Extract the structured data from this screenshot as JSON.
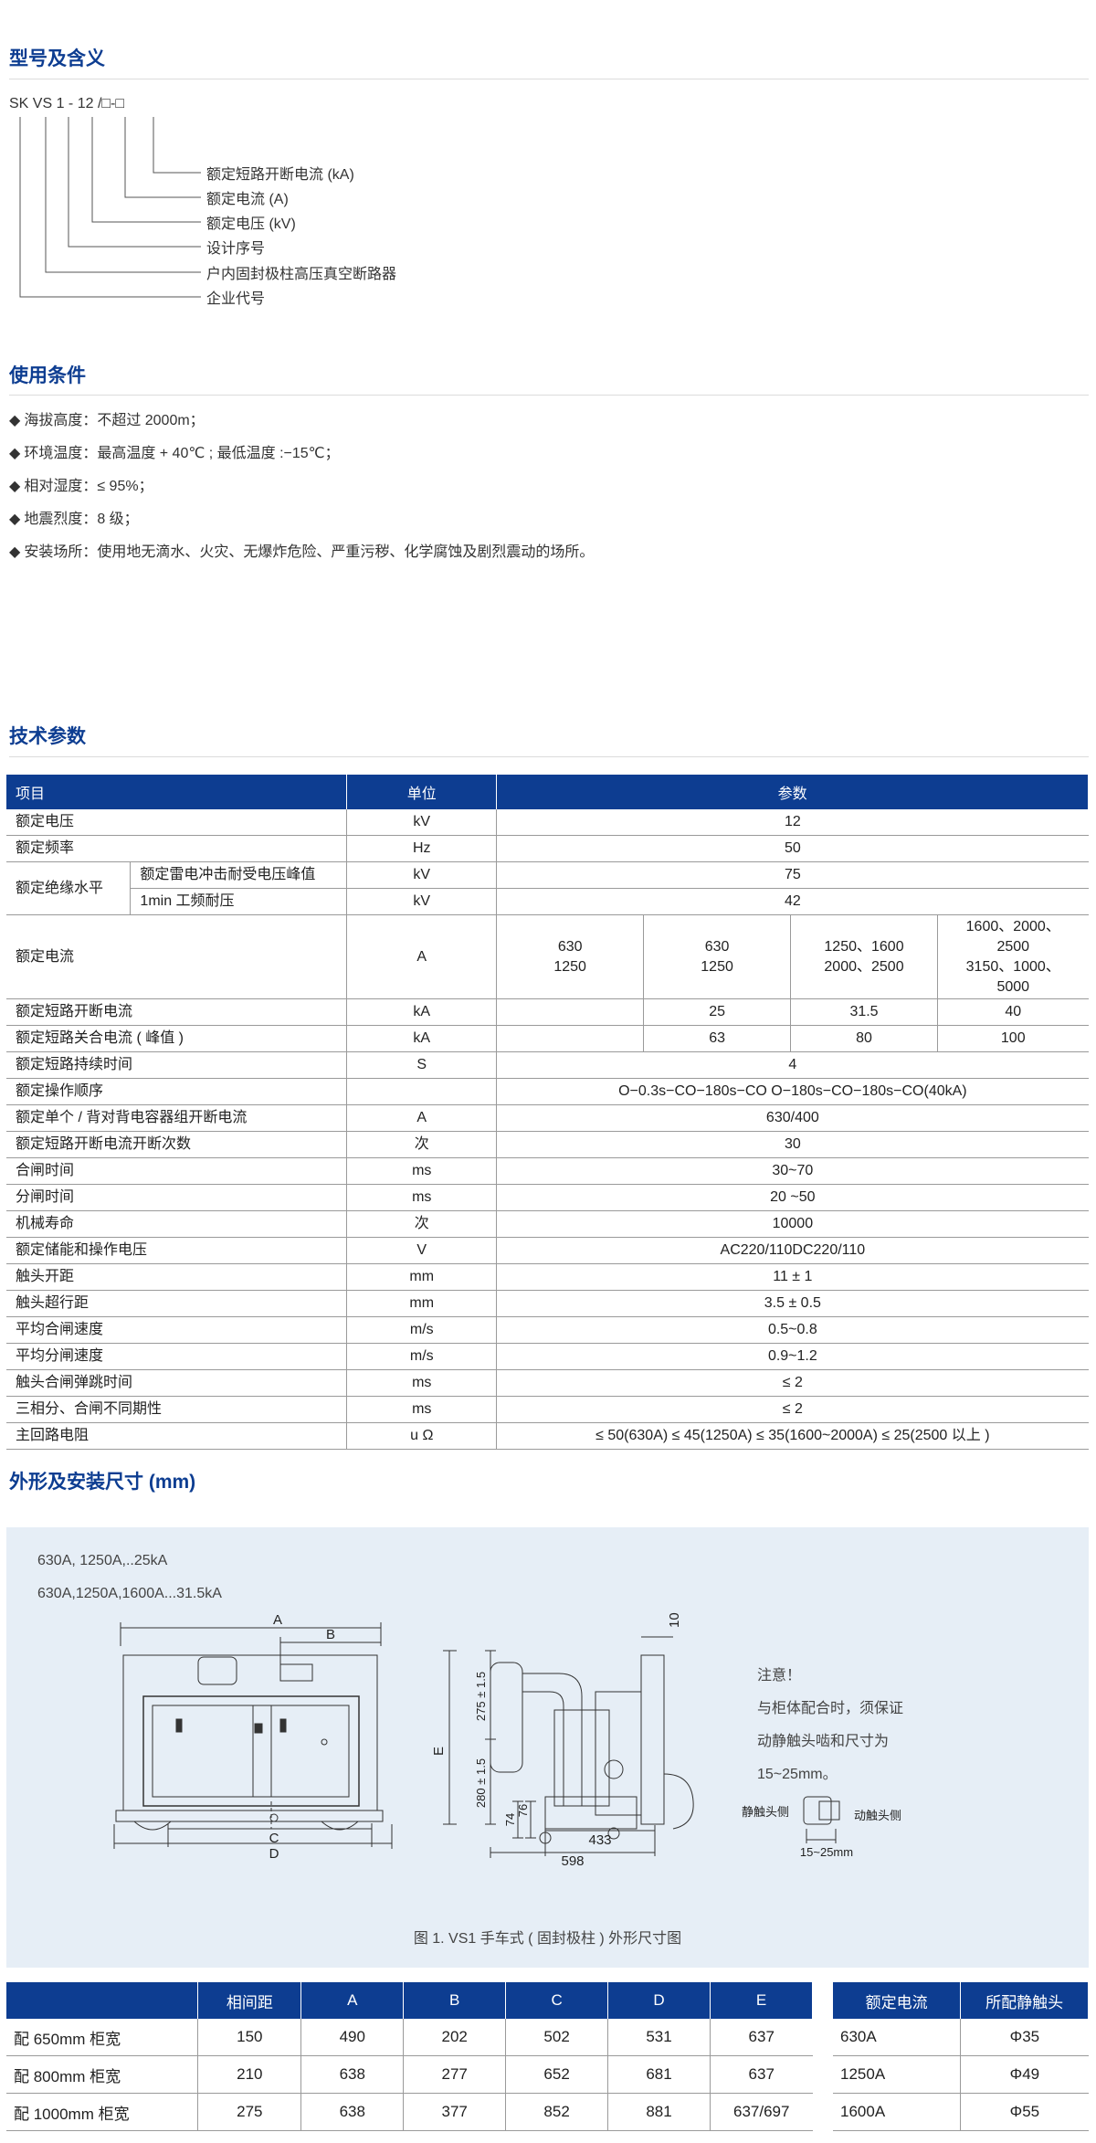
{
  "sections": {
    "model": "型号及含义",
    "conditions": "使用条件",
    "tech": "技术参数",
    "dimensions": "外形及安装尺寸 (mm)"
  },
  "model_code": "SK VS 1 - 12 /□-□",
  "model_legend": [
    "额定短路开断电流 (kA)",
    "额定电流 (A)",
    "额定电压 (kV)",
    "设计序号",
    "户内固封极柱高压真空断路器",
    "企业代号"
  ],
  "conditions": [
    "海拔高度：不超过 2000m；",
    "环境温度：最高温度 + 40℃ ; 最低温度 :−15℃；",
    "相对湿度：≤ 95%；",
    "地震烈度：8 级；",
    "安装场所：使用地无滴水、火灾、无爆炸危险、严重污秽、化学腐蚀及剧烈震动的场所。"
  ],
  "bullet": "◆",
  "tech_table": {
    "headers": [
      "项目",
      "单位",
      "参数"
    ],
    "rated_voltage": [
      "额定电压",
      "kV",
      "12"
    ],
    "rated_frequency": [
      "额定频率",
      "Hz",
      "50"
    ],
    "insulation": {
      "label": "额定绝缘水平",
      "row1": [
        "额定雷电冲击耐受电压峰值",
        "kV",
        "75"
      ],
      "row2": [
        "1min 工频耐压",
        "kV",
        "42"
      ]
    },
    "rated_current": {
      "label": "额定电流",
      "unit": "A",
      "cols": [
        [
          "630",
          "1250"
        ],
        [
          "630",
          "1250"
        ],
        [
          "1250、1600",
          "2000、2500"
        ],
        [
          "1600、2000、",
          "2500",
          "3150、1000、",
          "5000"
        ]
      ]
    },
    "breaking": [
      "额定短路开断电流",
      "kA",
      "",
      "25",
      "31.5",
      "40"
    ],
    "making": [
      "额定短路关合电流 ( 峰值 )",
      "kA",
      "",
      "63",
      "80",
      "100"
    ],
    "rows": [
      [
        "额定短路持续时间",
        "S",
        "4"
      ],
      [
        "额定操作顺序",
        "",
        "O−0.3s−CO−180s−CO   O−180s−CO−180s−CO(40kA)"
      ],
      [
        "额定单个 / 背对背电容器组开断电流",
        "A",
        "630/400"
      ],
      [
        "额定短路开断电流开断次数",
        "次",
        "30"
      ],
      [
        "合闸时间",
        "ms",
        "30~70"
      ],
      [
        "分闸时间",
        "ms",
        "20 ~50"
      ],
      [
        "机械寿命",
        "次",
        "10000"
      ],
      [
        "额定储能和操作电压",
        "V",
        "AC220/110DC220/110"
      ],
      [
        "触头开距",
        "mm",
        "11 ± 1"
      ],
      [
        "触头超行距",
        "mm",
        "3.5 ± 0.5"
      ],
      [
        "平均合闸速度",
        "m/s",
        "0.5~0.8"
      ],
      [
        "平均分闸速度",
        "m/s",
        "0.9~1.2"
      ],
      [
        "触头合闸弹跳时间",
        "ms",
        "≤ 2"
      ],
      [
        "三相分、合闸不同期性",
        "ms",
        "≤ 2"
      ],
      [
        "主回路电阻",
        "u Ω",
        "≤ 50(630A) ≤ 45(1250A)   ≤ 35(1600~2000A) ≤ 25(2500 以上 )"
      ]
    ]
  },
  "figure": {
    "line1": "630A, 1250A,..25kA",
    "line2": "630A,1250A,1600A...31.5kA",
    "caption": "图 1.  VS1 手车式 ( 固封极柱 ) 外形尺寸图",
    "note_title": "注意！",
    "note_lines": [
      "与柜体配合时，须保证",
      "动静触头啮和尺寸为",
      "15~25mm。"
    ],
    "labels": {
      "A": "A",
      "B": "B",
      "C": "C",
      "D": "D",
      "E": "E",
      "d10": "10",
      "d275": "275 ± 1.5",
      "d280": "280 ± 1.5",
      "d74": "74",
      "d76": "76",
      "d433": "433",
      "d598": "598",
      "static": "静触头侧",
      "moving": "动触头侧",
      "range": "15~25mm"
    }
  },
  "dims_table": {
    "headers": [
      "",
      "相间距",
      "A",
      "B",
      "C",
      "D",
      "E"
    ],
    "rows": [
      [
        "配 650mm 柜宽",
        "150",
        "490",
        "202",
        "502",
        "531",
        "637"
      ],
      [
        "配 800mm 柜宽",
        "210",
        "638",
        "277",
        "652",
        "681",
        "637"
      ],
      [
        "配 1000mm 柜宽",
        "275",
        "638",
        "377",
        "852",
        "881",
        "637/697"
      ]
    ]
  },
  "contact_table": {
    "headers": [
      "额定电流",
      "所配静触头"
    ],
    "rows": [
      [
        "630A",
        "Φ35"
      ],
      [
        "1250A",
        "Φ49"
      ],
      [
        "1600A",
        "Φ55"
      ]
    ]
  }
}
